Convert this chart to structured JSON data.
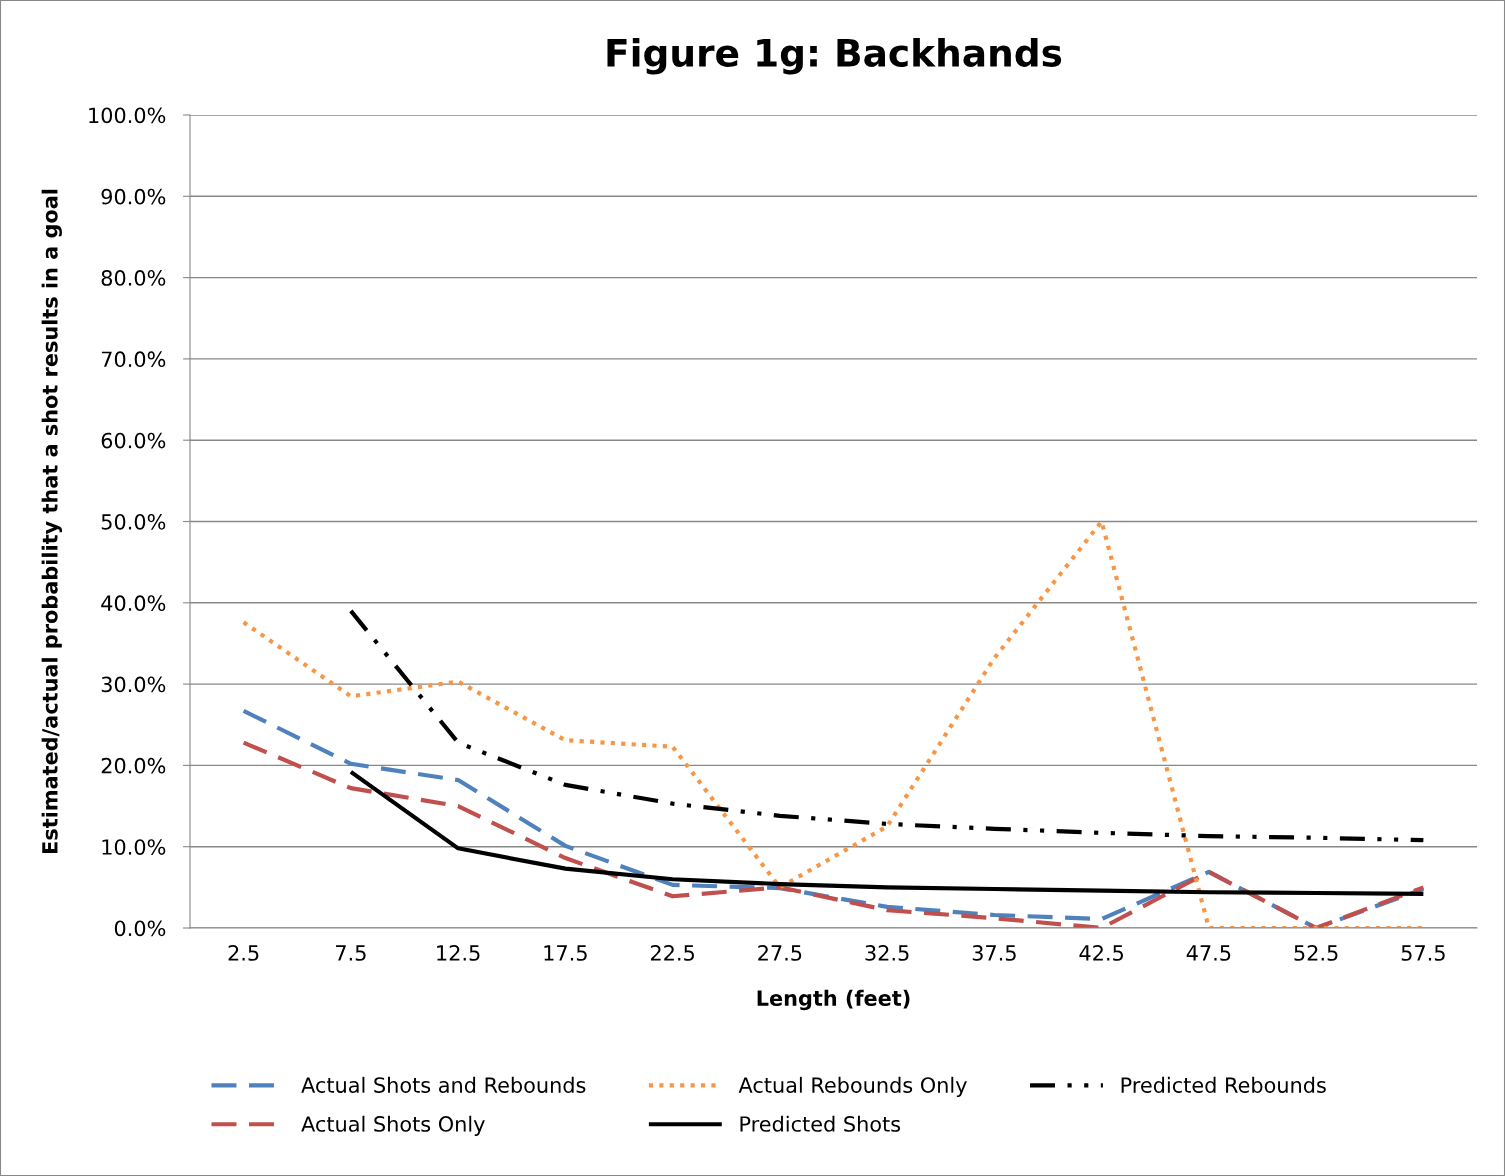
{
  "chart_data": {
    "type": "line",
    "title": "Figure 1g: Backhands",
    "xlabel": "Length (feet)",
    "ylabel": "Estimated/actual probability that a shot results in a goal",
    "categories": [
      "2.5",
      "7.5",
      "12.5",
      "17.5",
      "22.5",
      "27.5",
      "32.5",
      "37.5",
      "42.5",
      "47.5",
      "52.5",
      "57.5"
    ],
    "series": [
      {
        "name": "Actual Shots and Rebounds",
        "color": "#4f81bd",
        "line_style": "dashed",
        "values": [
          26.7,
          20.2,
          18.2,
          10.1,
          5.3,
          4.9,
          2.6,
          1.6,
          1.1,
          6.9,
          0,
          4.8
        ]
      },
      {
        "name": "Actual Shots Only",
        "color": "#c0504d",
        "line_style": "dashed",
        "values": [
          22.8,
          17.2,
          15.0,
          8.6,
          3.9,
          5.0,
          2.2,
          1.2,
          0,
          6.9,
          0,
          5.0
        ]
      },
      {
        "name": "Actual Rebounds Only",
        "color": "#f79646",
        "line_style": "dotted",
        "values": [
          37.6,
          28.5,
          30.3,
          23.1,
          22.3,
          5.0,
          12.5,
          33.2,
          50.0,
          0,
          0,
          0
        ]
      },
      {
        "name": "Predicted Shots",
        "color": "#000000",
        "line_style": "solid",
        "values": [
          null,
          19.2,
          9.8,
          7.3,
          6.0,
          5.4,
          5.0,
          4.8,
          4.6,
          4.4,
          4.3,
          4.2
        ]
      },
      {
        "name": "Predicted Rebounds",
        "color": "#000000",
        "line_style": "dashdot",
        "values": [
          null,
          39.0,
          22.8,
          17.6,
          15.3,
          13.8,
          12.8,
          12.2,
          11.7,
          11.3,
          11.1,
          10.8
        ]
      }
    ],
    "ylim": [
      0,
      100
    ],
    "yticks": [
      {
        "value": 0,
        "label": "0.0%"
      },
      {
        "value": 10,
        "label": "10.0%"
      },
      {
        "value": 20,
        "label": "20.0%"
      },
      {
        "value": 30,
        "label": "30.0%"
      },
      {
        "value": 40,
        "label": "40.0%"
      },
      {
        "value": 50,
        "label": "50.0%"
      },
      {
        "value": 60,
        "label": "60.0%"
      },
      {
        "value": 70,
        "label": "70.0%"
      },
      {
        "value": 80,
        "label": "80.0%"
      },
      {
        "value": 90,
        "label": "90.0%"
      },
      {
        "value": 100,
        "label": "100.0%"
      }
    ],
    "grid": "y",
    "legend": "bottom",
    "marker": "none"
  }
}
